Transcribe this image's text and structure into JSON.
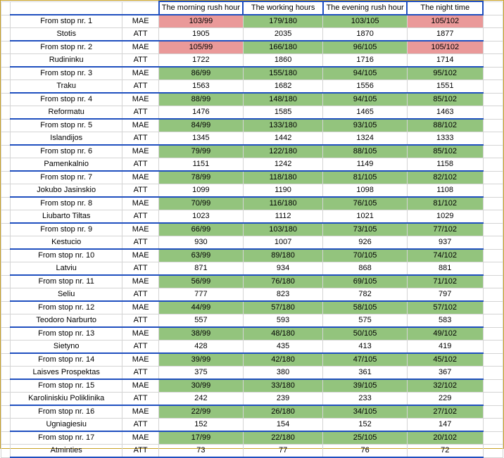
{
  "columns": [
    "The morning rush hour",
    "The working hours",
    "The evening rush hour",
    "The night time"
  ],
  "colors": {
    "good": "#93c47d",
    "bad": "#ea9999",
    "border": "#1f4fbf"
  },
  "rows": [
    {
      "stop": "From stop nr. 1",
      "name": "Stotis",
      "mae_label": "MAE",
      "att_label": "ATT",
      "mae": [
        "103/99",
        "179/180",
        "103/105",
        "105/102"
      ],
      "mae_status": [
        "bad",
        "good",
        "good",
        "bad"
      ],
      "att": [
        "1905",
        "2035",
        "1870",
        "1877"
      ]
    },
    {
      "stop": "From stop nr. 2",
      "name": "Rudininku",
      "mae_label": "MAE",
      "att_label": "ATT",
      "mae": [
        "105/99",
        "166/180",
        "96/105",
        "105/102"
      ],
      "mae_status": [
        "bad",
        "good",
        "good",
        "bad"
      ],
      "att": [
        "1722",
        "1860",
        "1716",
        "1714"
      ]
    },
    {
      "stop": "From stop nr. 3",
      "name": "Traku",
      "mae_label": "MAE",
      "att_label": "ATT",
      "mae": [
        "86/99",
        "155/180",
        "94/105",
        "95/102"
      ],
      "mae_status": [
        "good",
        "good",
        "good",
        "good"
      ],
      "att": [
        "1563",
        "1682",
        "1556",
        "1551"
      ]
    },
    {
      "stop": "From stop nr. 4",
      "name": "Reformatu",
      "mae_label": "MAE",
      "att_label": "ATT",
      "mae": [
        "88/99",
        "148/180",
        "94/105",
        "85/102"
      ],
      "mae_status": [
        "good",
        "good",
        "good",
        "good"
      ],
      "att": [
        "1476",
        "1585",
        "1465",
        "1463"
      ]
    },
    {
      "stop": "From stop nr. 5",
      "name": "Islandijos",
      "mae_label": "MAE",
      "att_label": "ATT",
      "mae": [
        "84/99",
        "133/180",
        "93/105",
        "88/102"
      ],
      "mae_status": [
        "good",
        "good",
        "good",
        "good"
      ],
      "att": [
        "1345",
        "1442",
        "1324",
        "1333"
      ]
    },
    {
      "stop": "From stop nr. 6",
      "name": "Pamenkalnio",
      "mae_label": "MAE",
      "att_label": "ATT",
      "mae": [
        "79/99",
        "122/180",
        "88/105",
        "85/102"
      ],
      "mae_status": [
        "good",
        "good",
        "good",
        "good"
      ],
      "att": [
        "1151",
        "1242",
        "1149",
        "1158"
      ]
    },
    {
      "stop": "From stop nr. 7",
      "name": "Jokubo Jasinskio",
      "mae_label": "MAE",
      "att_label": "ATT",
      "mae": [
        "78/99",
        "118/180",
        "81/105",
        "82/102"
      ],
      "mae_status": [
        "good",
        "good",
        "good",
        "good"
      ],
      "att": [
        "1099",
        "1190",
        "1098",
        "1108"
      ]
    },
    {
      "stop": "From stop nr. 8",
      "name": "Liubarto Tiltas",
      "mae_label": "MAE",
      "att_label": "ATT",
      "mae": [
        "70/99",
        "116/180",
        "76/105",
        "81/102"
      ],
      "mae_status": [
        "good",
        "good",
        "good",
        "good"
      ],
      "att": [
        "1023",
        "1112",
        "1021",
        "1029"
      ]
    },
    {
      "stop": "From stop nr. 9",
      "name": "Kestucio",
      "mae_label": "MAE",
      "att_label": "ATT",
      "mae": [
        "66/99",
        "103/180",
        "73/105",
        "77/102"
      ],
      "mae_status": [
        "good",
        "good",
        "good",
        "good"
      ],
      "att": [
        "930",
        "1007",
        "926",
        "937"
      ]
    },
    {
      "stop": "From stop nr. 10",
      "name": "Latviu",
      "mae_label": "MAE",
      "att_label": "ATT",
      "mae": [
        "63/99",
        "89/180",
        "70/105",
        "74/102"
      ],
      "mae_status": [
        "good",
        "good",
        "good",
        "good"
      ],
      "att": [
        "871",
        "934",
        "868",
        "881"
      ]
    },
    {
      "stop": "From stop nr. 11",
      "name": "Seliu",
      "mae_label": "MAE",
      "att_label": "ATT",
      "mae": [
        "56/99",
        "76/180",
        "69/105",
        "71/102"
      ],
      "mae_status": [
        "good",
        "good",
        "good",
        "good"
      ],
      "att": [
        "777",
        "823",
        "782",
        "797"
      ]
    },
    {
      "stop": "From stop nr. 12",
      "name": "Teodoro Narburto",
      "mae_label": "MAE",
      "att_label": "ATT",
      "mae": [
        "44/99",
        "57/180",
        "58/105",
        "57/102"
      ],
      "mae_status": [
        "good",
        "good",
        "good",
        "good"
      ],
      "att": [
        "557",
        "593",
        "575",
        "583"
      ]
    },
    {
      "stop": "From stop nr. 13",
      "name": "Sietyno",
      "mae_label": "MAE",
      "att_label": "ATT",
      "mae": [
        "38/99",
        "48/180",
        "50/105",
        "49/102"
      ],
      "mae_status": [
        "good",
        "good",
        "good",
        "good"
      ],
      "att": [
        "428",
        "435",
        "413",
        "419"
      ]
    },
    {
      "stop": "From stop nr. 14",
      "name": "Laisves Prospektas",
      "mae_label": "MAE",
      "att_label": "ATT",
      "mae": [
        "39/99",
        "42/180",
        "47/105",
        "45/102"
      ],
      "mae_status": [
        "good",
        "good",
        "good",
        "good"
      ],
      "att": [
        "375",
        "380",
        "361",
        "367"
      ]
    },
    {
      "stop": "From stop nr. 15",
      "name": "Karoliniskiu Poliklinika",
      "mae_label": "MAE",
      "att_label": "ATT",
      "mae": [
        "30/99",
        "33/180",
        "39/105",
        "32/102"
      ],
      "mae_status": [
        "good",
        "good",
        "good",
        "good"
      ],
      "att": [
        "242",
        "239",
        "233",
        "229"
      ]
    },
    {
      "stop": "From stop nr. 16",
      "name": "Ugniagiesiu",
      "mae_label": "MAE",
      "att_label": "ATT",
      "mae": [
        "22/99",
        "26/180",
        "34/105",
        "27/102"
      ],
      "mae_status": [
        "good",
        "good",
        "good",
        "good"
      ],
      "att": [
        "152",
        "154",
        "152",
        "147"
      ]
    },
    {
      "stop": "From stop nr. 17",
      "name": "Atminties",
      "mae_label": "MAE",
      "att_label": "ATT",
      "mae": [
        "17/99",
        "22/180",
        "25/105",
        "20/102"
      ],
      "mae_status": [
        "good",
        "good",
        "good",
        "good"
      ],
      "att": [
        "73",
        "77",
        "76",
        "72"
      ]
    }
  ]
}
